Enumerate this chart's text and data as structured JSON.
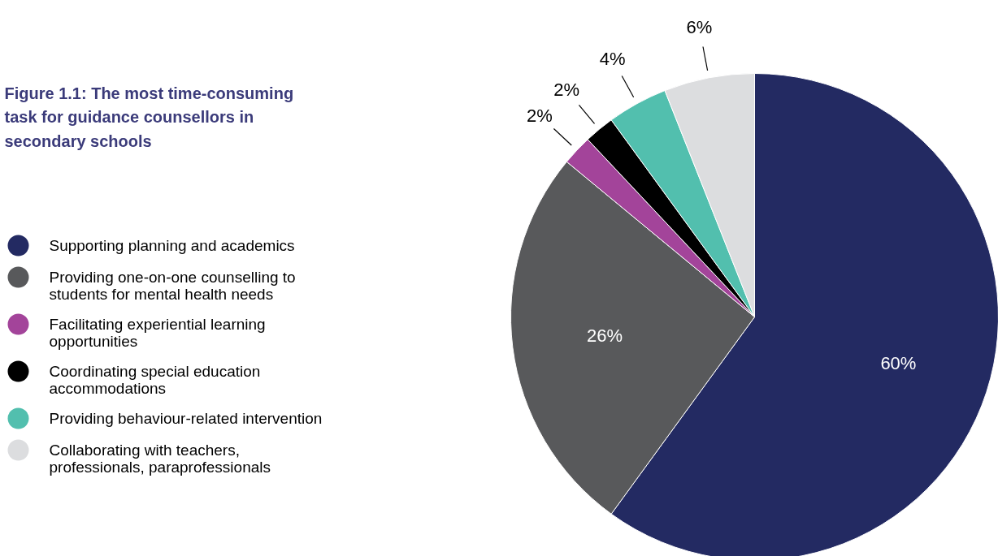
{
  "chart_data": {
    "type": "pie",
    "title": "Figure 1.1: The most time-consuming task for guidance counsellors in secondary schools",
    "categories": [
      "Supporting planning and academics",
      "Providing one-on-one counselling to students for mental health needs",
      "Facilitating experiential learning opportunities",
      "Coordinating special education accommodations",
      "Providing behaviour-related intervention",
      "Collaborating with teachers, professionals, paraprofessionals"
    ],
    "values": [
      60,
      26,
      2,
      2,
      4,
      6
    ],
    "colors": [
      "#232a62",
      "#58595b",
      "#a3449a",
      "#000000",
      "#52bfae",
      "#dcdddf"
    ],
    "value_labels": [
      "60%",
      "26%",
      "2%",
      "2%",
      "4%",
      "6%"
    ],
    "legend": "left"
  }
}
